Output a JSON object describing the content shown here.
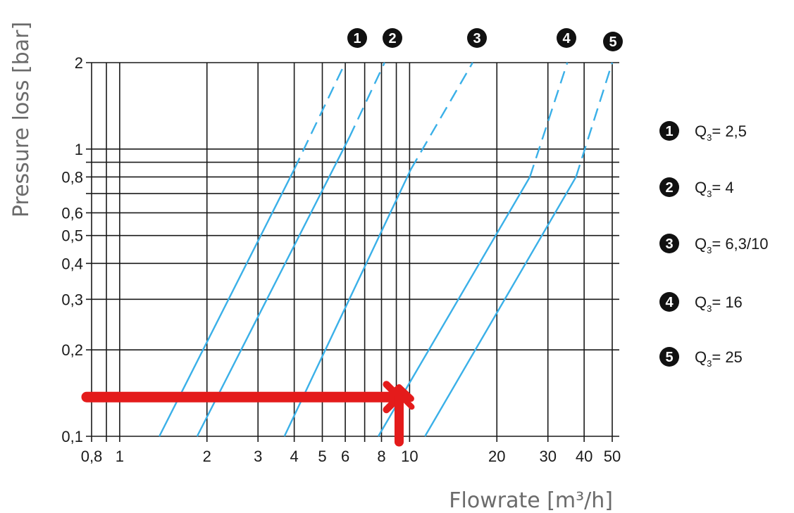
{
  "chart_data": {
    "type": "line",
    "xlabel": "Flowrate [m³/h]",
    "ylabel": "Pressure loss [bar]",
    "x_scale": "log",
    "y_scale": "log",
    "xlim": [
      0.8,
      50
    ],
    "ylim": [
      0.1,
      2
    ],
    "grid": true,
    "x_ticks": [
      {
        "value": 0.8,
        "label": "0,8"
      },
      {
        "value": 1,
        "label": "1"
      },
      {
        "value": 2,
        "label": "2"
      },
      {
        "value": 3,
        "label": "3"
      },
      {
        "value": 4,
        "label": "4"
      },
      {
        "value": 5,
        "label": "5"
      },
      {
        "value": 6,
        "label": "6"
      },
      {
        "value": 8,
        "label": "8"
      },
      {
        "value": 10,
        "label": "10"
      },
      {
        "value": 20,
        "label": "20"
      },
      {
        "value": 30,
        "label": "30"
      },
      {
        "value": 40,
        "label": "40"
      },
      {
        "value": 50,
        "label": "50"
      }
    ],
    "x_minor_gridlines": [
      0.9,
      7,
      9
    ],
    "y_ticks": [
      {
        "value": 0.1,
        "label": "0,1"
      },
      {
        "value": 0.2,
        "label": "0,2"
      },
      {
        "value": 0.3,
        "label": "0,3"
      },
      {
        "value": 0.4,
        "label": "0,4"
      },
      {
        "value": 0.5,
        "label": "0,5"
      },
      {
        "value": 0.6,
        "label": "0,6"
      },
      {
        "value": 0.8,
        "label": "0,8"
      },
      {
        "value": 1,
        "label": "1"
      },
      {
        "value": 2,
        "label": "2"
      }
    ],
    "y_minor_gridlines": [
      0.7,
      0.9
    ],
    "series": [
      {
        "marker": "1",
        "name_prefix": "Q",
        "name_sub": "3",
        "name_suffix": "= 2,5",
        "solid": [
          [
            1.37,
            0.1
          ],
          [
            4.0,
            0.85
          ]
        ],
        "dashed": [
          [
            4.0,
            0.85
          ],
          [
            6.0,
            2.0
          ]
        ]
      },
      {
        "marker": "2",
        "name_prefix": "Q",
        "name_sub": "3",
        "name_suffix": "= 4",
        "solid": [
          [
            1.85,
            0.1
          ],
          [
            6.2,
            1.1
          ]
        ],
        "dashed": [
          [
            6.2,
            1.1
          ],
          [
            8.2,
            2.0
          ]
        ]
      },
      {
        "marker": "3",
        "name_prefix": "Q",
        "name_sub": "3",
        "name_suffix": "= 6,3/10",
        "solid": [
          [
            3.7,
            0.1
          ],
          [
            10.1,
            0.85
          ]
        ],
        "dashed": [
          [
            10.1,
            0.85
          ],
          [
            16.5,
            2.0
          ]
        ]
      },
      {
        "marker": "4",
        "name_prefix": "Q",
        "name_sub": "3",
        "name_suffix": "= 16",
        "solid": [
          [
            7.8,
            0.1
          ],
          [
            26.0,
            0.8
          ]
        ],
        "dashed": [
          [
            26.0,
            0.8
          ],
          [
            35.0,
            2.0
          ]
        ]
      },
      {
        "marker": "5",
        "name_prefix": "Q",
        "name_sub": "3",
        "name_suffix": "= 25",
        "solid": [
          [
            11.3,
            0.1
          ],
          [
            37.5,
            0.8
          ]
        ],
        "dashed": [
          [
            37.5,
            0.8
          ],
          [
            50.0,
            2.0
          ]
        ]
      }
    ],
    "annotation": {
      "type": "red-arrows",
      "horizontal_y": 0.137,
      "horizontal_x_from": 0.7,
      "horizontal_x_to": 9.2,
      "vertical_x": 9.2,
      "vertical_y_from": 0.1,
      "vertical_y_to": 0.148
    },
    "colors": {
      "series_line": "#3ab0e8",
      "grid": "#1a1a1a",
      "annotation": "#e41b1b",
      "marker_fill": "#111111"
    }
  }
}
